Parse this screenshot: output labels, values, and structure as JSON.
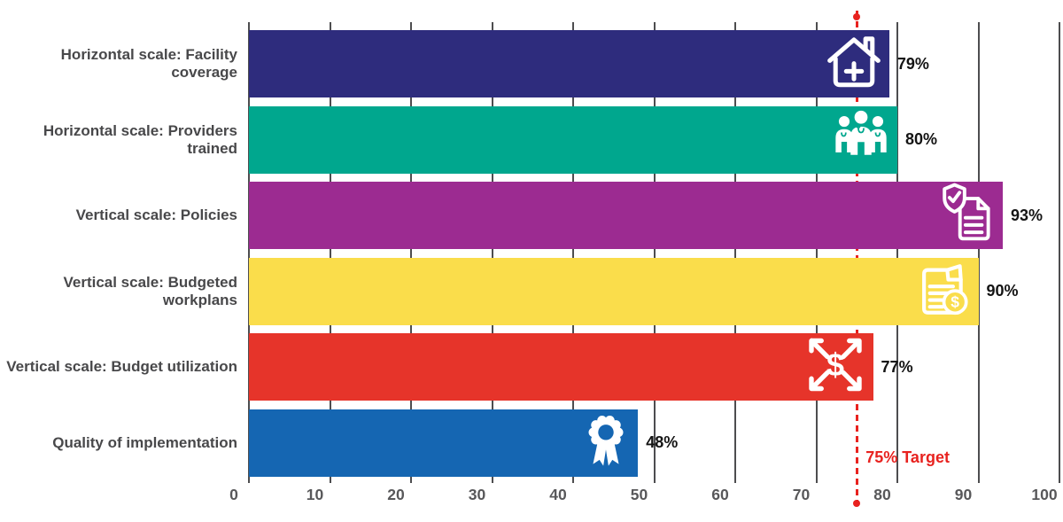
{
  "chart_data": {
    "type": "bar",
    "orientation": "horizontal",
    "title": "",
    "xlabel": "",
    "ylabel": "",
    "xlim": [
      0,
      100
    ],
    "x_ticks": [
      0,
      10,
      20,
      30,
      40,
      50,
      60,
      70,
      80,
      90,
      100
    ],
    "grid": true,
    "categories": [
      "Horizontal scale: Facility coverage",
      "Horizontal scale: Providers trained",
      "Vertical scale: Policies",
      "Vertical scale: Budgeted workplans",
      "Vertical scale: Budget utilization",
      "Quality of implementation"
    ],
    "values": [
      79,
      80,
      93,
      90,
      77,
      48
    ],
    "value_labels": [
      "79%",
      "80%",
      "93%",
      "90%",
      "77%",
      "48%"
    ],
    "bar_colors": [
      "#2e2c7d",
      "#00a78e",
      "#9c2b91",
      "#fadd4b",
      "#e6342a",
      "#1566b2"
    ],
    "icons": [
      "health-facility-icon",
      "providers-icon",
      "policy-shield-icon",
      "budget-document-icon",
      "budget-expand-icon",
      "quality-award-icon"
    ],
    "target": {
      "value": 75,
      "label": "75% Target"
    }
  },
  "colors": {
    "grid": "#4d4d4f",
    "tick_text": "#58585a",
    "category_text": "#48484a",
    "value_text": "#141414",
    "target_red": "#e8221f",
    "icon": "#ffffff",
    "background": "#ffffff"
  }
}
